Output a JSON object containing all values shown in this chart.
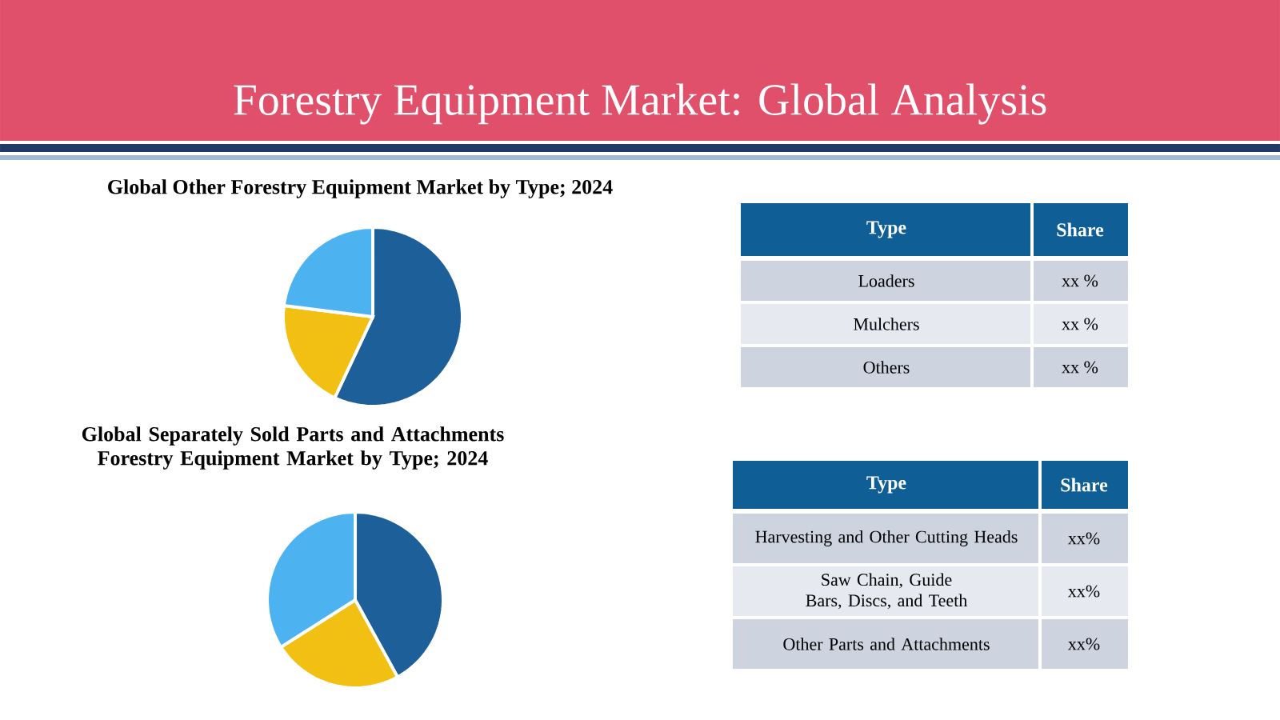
{
  "chart_data": [
    {
      "type": "pie",
      "title": "Forestry Equipment Market: Global Analysis",
      "subtitle": "Global Other Forestry Equipment Market by Type; 2024",
      "categories": [
        null,
        null,
        null
      ],
      "values": [
        57,
        20,
        23
      ],
      "colors": [
        "#1d5f98",
        "#f2c012",
        "#4db2f0"
      ]
    },
    {
      "type": "other",
      "annotations": [
        "Type",
        "Share"
      ],
      "categories": [
        "Loaders",
        "Mulchers",
        "Others"
      ],
      "value_labels": [
        "xx %",
        "xx %",
        "xx %"
      ]
    },
    {
      "type": "pie",
      "title": "Global Separately Sold Parts and Attachments Forestry Equipment Market by Type; 2024",
      "categories": [
        null,
        null,
        null
      ],
      "values": [
        42,
        24,
        34
      ],
      "colors": [
        "#1d5f98",
        "#f2c012",
        "#4db2f0"
      ]
    },
    {
      "type": "other",
      "annotations": [
        "Type",
        "Share"
      ],
      "categories": [
        "Harvesting and Other Cutting Heads",
        "Saw Chain, Guide Bars, Discs, and Teeth",
        "Other Parts and Attachments"
      ],
      "value_labels": [
        "xx%",
        "xx%",
        "xx%"
      ]
    }
  ]
}
